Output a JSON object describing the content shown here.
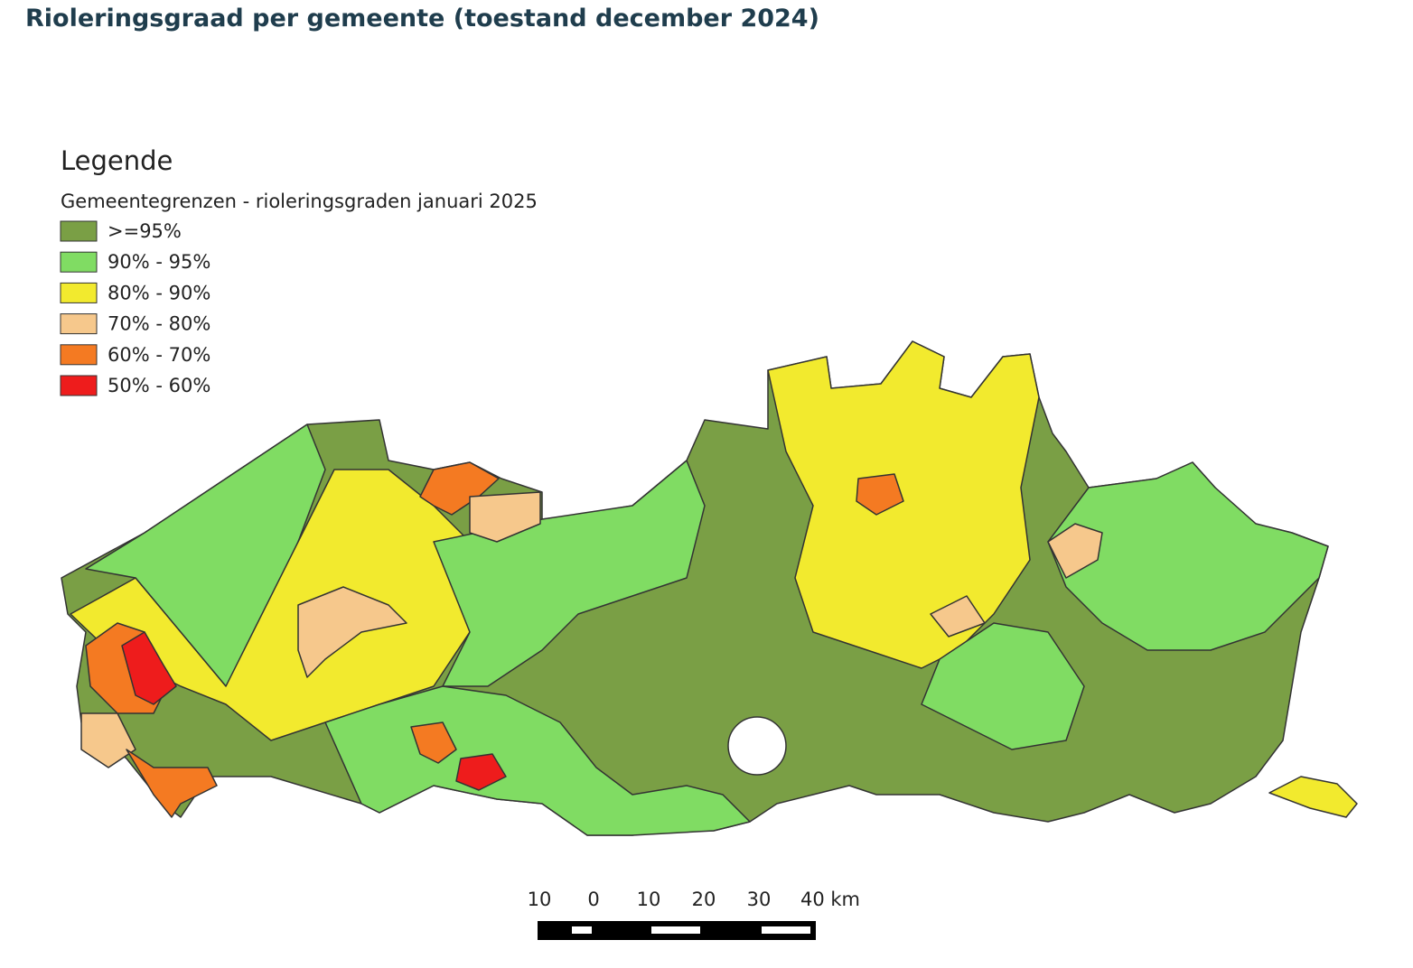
{
  "header": {
    "title": "Rioleringsgraad per gemeente (toestand december 2024)"
  },
  "legend": {
    "title": "Legende",
    "subtitle": "Gemeentegrenzen - rioleringsgraden januari 2025",
    "items": [
      {
        "label": ">=95%",
        "color": "#7a9f45"
      },
      {
        "label": "90% - 95%",
        "color": "#80dc63"
      },
      {
        "label": "80% - 90%",
        "color": "#f2ea2e"
      },
      {
        "label": "70% - 80%",
        "color": "#f6c88c"
      },
      {
        "label": "60% - 70%",
        "color": "#f47a22"
      },
      {
        "label": "50% - 60%",
        "color": "#ee1c1c"
      }
    ]
  },
  "scale_bar": {
    "labels": [
      "10",
      "0",
      "10",
      "20",
      "30",
      "40 km"
    ]
  }
}
